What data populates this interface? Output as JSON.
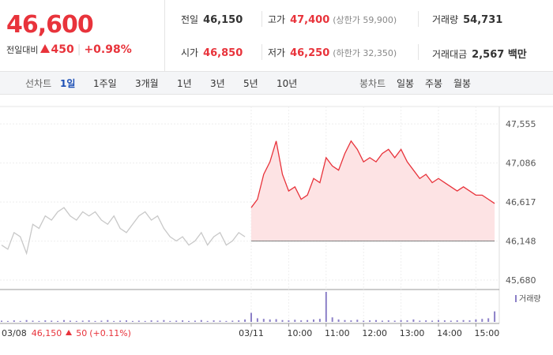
{
  "header": {
    "price": "46,600",
    "change_label": "전일대비",
    "change": "450",
    "change_pct": "+0.98%"
  },
  "stats": [
    {
      "label": "전일",
      "value": "46,150"
    },
    {
      "label": "고가",
      "value": "47,400",
      "extra": "(상한가 59,900)"
    },
    {
      "label": "거래량",
      "value": "54,731"
    },
    {
      "label": "시가",
      "value": "46,850"
    },
    {
      "label": "저가",
      "value": "46,250",
      "extra": "(하한가 32,350)"
    },
    {
      "label": "거래대금",
      "value": "2,567 백만"
    }
  ],
  "line_tabs": {
    "label": "선차트",
    "items": [
      "1일",
      "1주일",
      "3개월",
      "1년",
      "3년",
      "5년",
      "10년"
    ]
  },
  "candle_tabs": {
    "label": "봉차트",
    "items": [
      "일봉",
      "주봉",
      "월봉"
    ]
  },
  "footer": {
    "date": "03/08",
    "price": "46,150",
    "change": "50",
    "change_pct": "(+0.11%)"
  },
  "chart_data": {
    "type": "line",
    "categories": [
      null,
      null,
      null,
      null,
      null,
      null,
      null,
      null,
      null,
      null,
      null,
      null,
      null,
      null,
      null,
      null,
      null,
      null,
      null,
      null,
      null,
      null,
      null,
      null,
      null,
      null,
      null,
      null,
      null,
      null,
      null,
      null,
      null,
      null,
      null,
      null,
      null,
      null,
      null,
      null,
      "03/11",
      null,
      null,
      null,
      null,
      null,
      "10:00",
      null,
      null,
      null,
      null,
      null,
      "11:00",
      null,
      null,
      null,
      null,
      null,
      "12:00",
      null,
      null,
      null,
      null,
      null,
      "13:00",
      null,
      null,
      null,
      null,
      null,
      "14:00",
      null,
      null,
      null,
      null,
      null,
      "15:00",
      null,
      null,
      null
    ],
    "series": [
      {
        "color": "#c8c8c8",
        "values": [
          46100,
          46050,
          46250,
          46200,
          46000,
          46350,
          46300,
          46450,
          46400,
          46500,
          46550,
          46450,
          46400,
          46500,
          46450,
          46500,
          46400,
          46350,
          46450,
          46300,
          46250,
          46350,
          46450,
          46500,
          46400,
          46450,
          46300,
          46200,
          46150,
          46200,
          46100,
          46150,
          46250,
          46100,
          46200,
          46250,
          46100,
          46150,
          46250,
          46200,
          null,
          null,
          null,
          null,
          null,
          null,
          null,
          null,
          null,
          null,
          null,
          null,
          null,
          null,
          null,
          null,
          null,
          null,
          null,
          null,
          null,
          null,
          null,
          null,
          null,
          null,
          null,
          null,
          null,
          null,
          null,
          null,
          null,
          null,
          null,
          null,
          null,
          null,
          null,
          null
        ]
      },
      {
        "color": "#e8333b",
        "fill": "#fde3e4",
        "values": [
          null,
          null,
          null,
          null,
          null,
          null,
          null,
          null,
          null,
          null,
          null,
          null,
          null,
          null,
          null,
          null,
          null,
          null,
          null,
          null,
          null,
          null,
          null,
          null,
          null,
          null,
          null,
          null,
          null,
          null,
          null,
          null,
          null,
          null,
          null,
          null,
          null,
          null,
          null,
          null,
          46550,
          46650,
          46950,
          47100,
          47350,
          46950,
          46750,
          46800,
          46650,
          46700,
          46900,
          46850,
          47150,
          47050,
          47000,
          47200,
          47350,
          47250,
          47100,
          47150,
          47100,
          47200,
          47250,
          47150,
          47250,
          47100,
          47000,
          46900,
          46950,
          46850,
          46900,
          46850,
          46800,
          46750,
          46800,
          46750,
          46700,
          46700,
          46650,
          46600
        ]
      }
    ],
    "baseline": 46150,
    "ylim": [
      45585,
      47670
    ],
    "yticks": [
      {
        "value": 45680,
        "label": "45,680"
      },
      {
        "value": 46148,
        "label": "46,148"
      },
      {
        "value": 46617,
        "label": "46,617"
      },
      {
        "value": 47086,
        "label": "47,086"
      },
      {
        "value": 47555,
        "label": "47,555"
      }
    ],
    "volume": {
      "name": "거래량",
      "color": "#8b7fc7",
      "ylim": [
        0,
        100
      ],
      "values": [
        4,
        3,
        5,
        3,
        6,
        4,
        3,
        5,
        4,
        3,
        6,
        4,
        3,
        4,
        5,
        3,
        4,
        6,
        3,
        4,
        5,
        3,
        4,
        3,
        5,
        4,
        6,
        3,
        4,
        5,
        3,
        4,
        6,
        3,
        5,
        4,
        3,
        4,
        5,
        8,
        30,
        12,
        10,
        8,
        9,
        6,
        5,
        7,
        5,
        6,
        8,
        10,
        100,
        15,
        8,
        6,
        5,
        7,
        4,
        5,
        6,
        4,
        5,
        4,
        6,
        5,
        8,
        4,
        5,
        4,
        6,
        5,
        4,
        5,
        6,
        5,
        8,
        10,
        12,
        35
      ]
    }
  }
}
